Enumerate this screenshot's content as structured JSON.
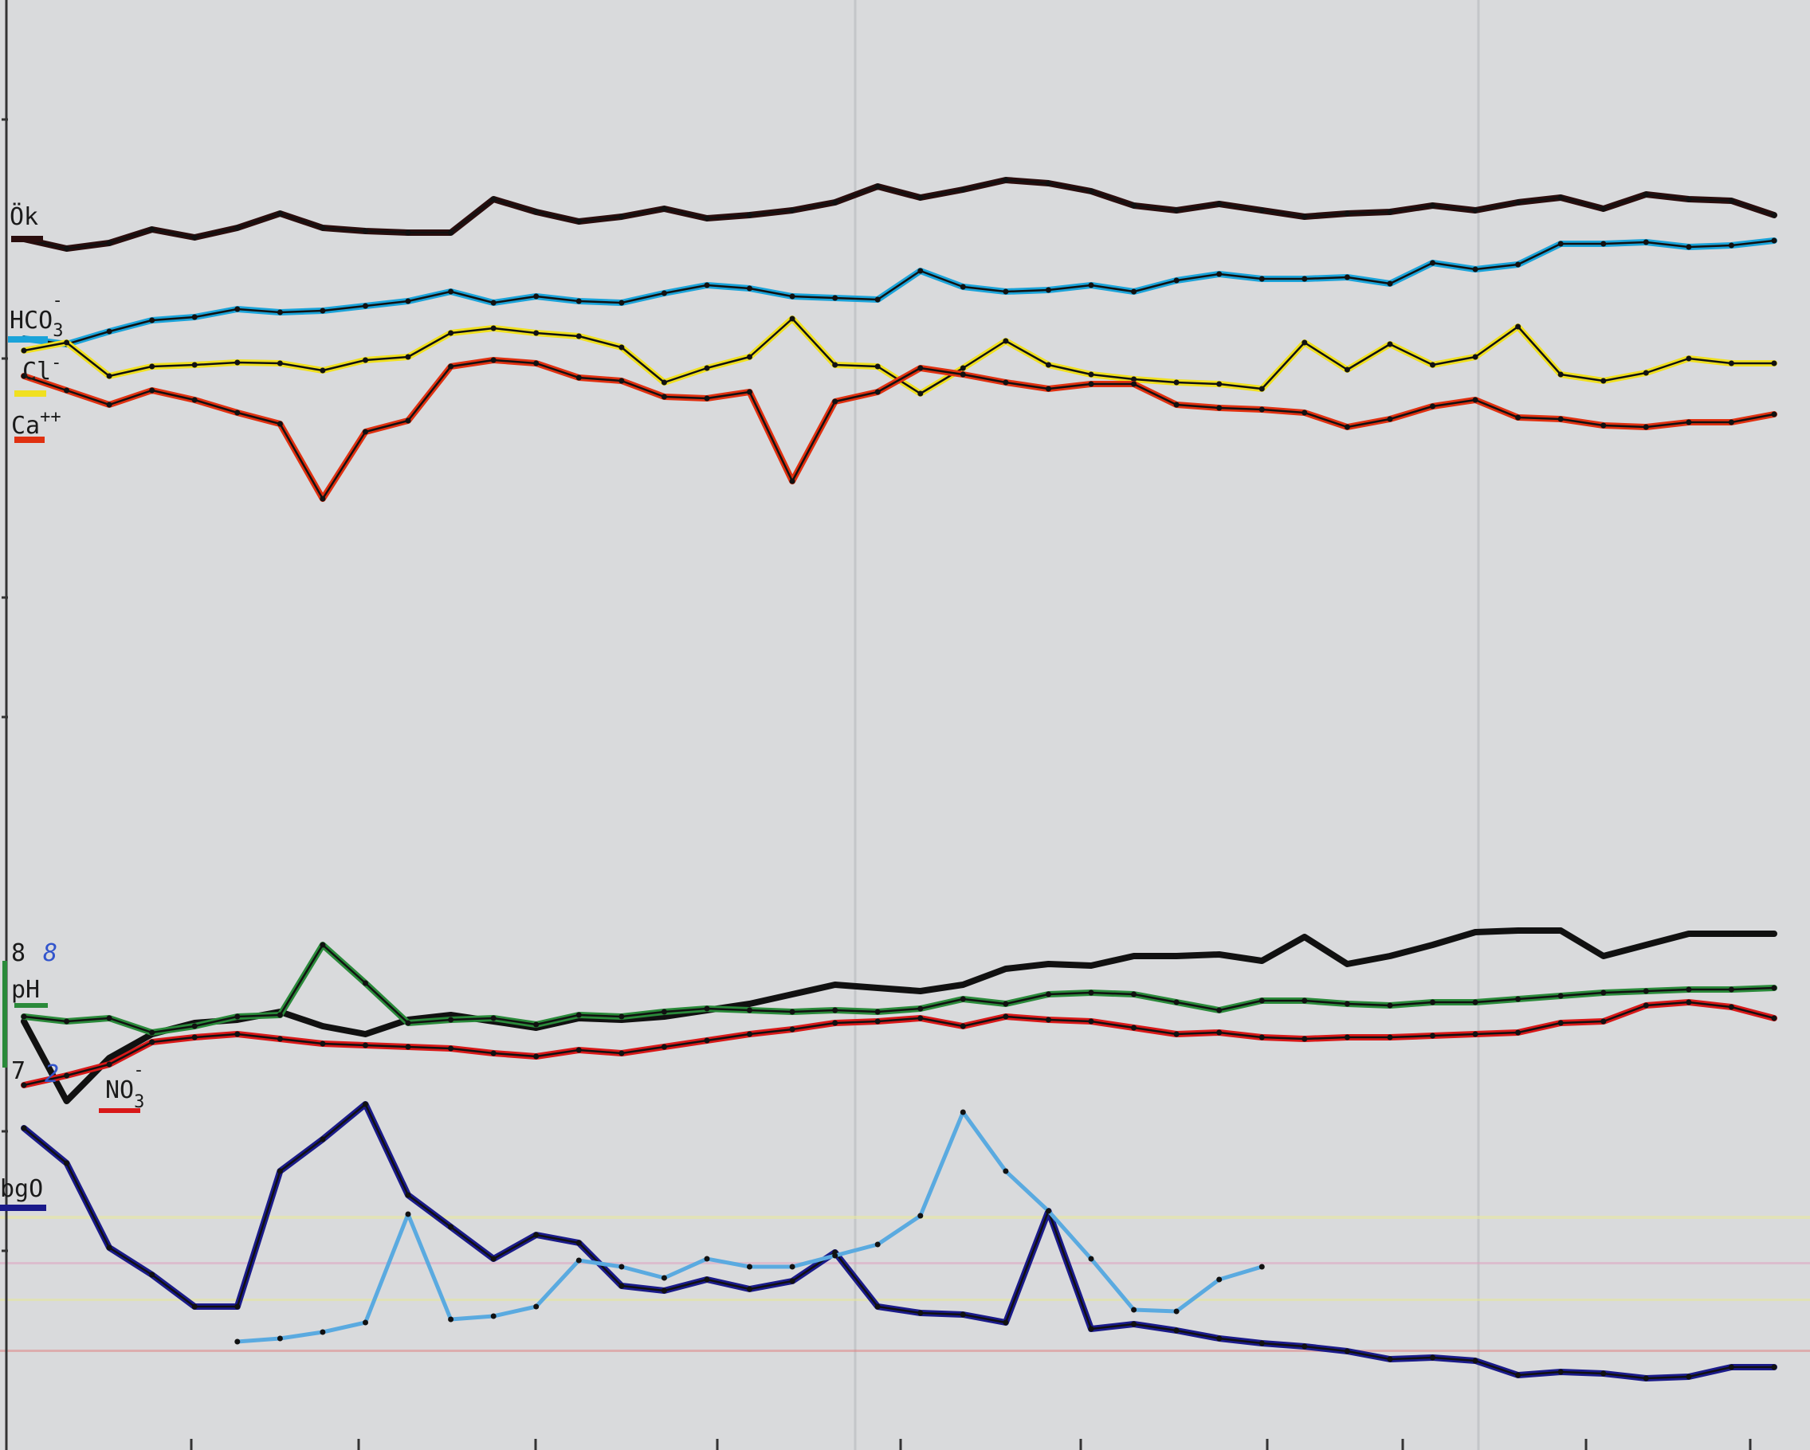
{
  "chart_data": {
    "type": "line",
    "title": "",
    "xlabel": "",
    "ylabel": "",
    "grid": false,
    "x_count": 42,
    "legend": [
      "Ök",
      "HCO3-",
      "Cl-",
      "Ca++",
      "pH",
      "NO3-",
      "bgO"
    ],
    "tick_labels": {
      "ph_high": "8",
      "ph_low": "7",
      "ph_high_handwritten": "8",
      "ph_low_handwritten": "2"
    },
    "series": [
      {
        "name": "Ök",
        "color": "#2a0d0d",
        "y": [
          300,
          312,
          305,
          288,
          298,
          286,
          268,
          286,
          290,
          292,
          292,
          250,
          266,
          278,
          272,
          262,
          274,
          270,
          264,
          254,
          234,
          248,
          238,
          226,
          230,
          240,
          258,
          264,
          256,
          264,
          272,
          268,
          266,
          258,
          264,
          254,
          248,
          262,
          244,
          250,
          252,
          270
        ]
      },
      {
        "name": "HCO3-",
        "color": "#1aa3d9",
        "y": [
          425,
          432,
          416,
          402,
          398,
          388,
          392,
          390,
          384,
          378,
          366,
          380,
          372,
          378,
          380,
          368,
          358,
          362,
          372,
          374,
          376,
          340,
          360,
          366,
          364,
          358,
          366,
          352,
          344,
          350,
          350,
          348,
          356,
          330,
          338,
          332,
          306,
          306,
          304,
          310,
          308,
          302
        ]
      },
      {
        "name": "Cl-",
        "color": "#f0e020",
        "y": [
          440,
          430,
          472,
          460,
          458,
          455,
          456,
          465,
          452,
          448,
          418,
          412,
          418,
          422,
          436,
          480,
          462,
          448,
          400,
          458,
          460,
          494,
          462,
          428,
          458,
          470,
          476,
          480,
          482,
          488,
          430,
          464,
          432,
          458,
          448,
          410,
          470,
          478,
          468,
          450,
          456,
          456
        ]
      },
      {
        "name": "Ca++",
        "color": "#e03010",
        "y": [
          472,
          490,
          508,
          490,
          502,
          518,
          532,
          626,
          542,
          528,
          460,
          452,
          456,
          474,
          478,
          498,
          500,
          492,
          604,
          504,
          492,
          462,
          470,
          480,
          488,
          482,
          482,
          508,
          512,
          514,
          518,
          536,
          526,
          510,
          502,
          524,
          526,
          534,
          536,
          530,
          530,
          520
        ]
      },
      {
        "name": "pH (black)",
        "color": "#111111",
        "y": [
          1282,
          1382,
          1328,
          1298,
          1284,
          1280,
          1270,
          1288,
          1298,
          1280,
          1274,
          1282,
          1290,
          1278,
          1280,
          1276,
          1268,
          1260,
          1248,
          1236,
          1240,
          1244,
          1236,
          1216,
          1210,
          1212,
          1200,
          1200,
          1198,
          1206,
          1176,
          1210,
          1200,
          1186,
          1170,
          1168,
          1168,
          1200,
          1186,
          1172,
          1172,
          1172
        ]
      },
      {
        "name": "pH (green)",
        "color": "#2a8a3a",
        "y": [
          1276,
          1282,
          1278,
          1296,
          1288,
          1276,
          1274,
          1186,
          1234,
          1284,
          1280,
          1278,
          1286,
          1274,
          1276,
          1270,
          1266,
          1268,
          1270,
          1268,
          1270,
          1266,
          1254,
          1260,
          1248,
          1246,
          1248,
          1258,
          1268,
          1256,
          1256,
          1260,
          1262,
          1258,
          1258,
          1254,
          1250,
          1246,
          1244,
          1242,
          1242,
          1240
        ]
      },
      {
        "name": "NO3-",
        "color": "#d81818",
        "y": [
          1362,
          1350,
          1336,
          1308,
          1302,
          1298,
          1304,
          1310,
          1312,
          1314,
          1316,
          1322,
          1326,
          1318,
          1322,
          1314,
          1306,
          1298,
          1292,
          1284,
          1282,
          1278,
          1288,
          1276,
          1280,
          1282,
          1290,
          1298,
          1296,
          1302,
          1304,
          1302,
          1302,
          1300,
          1298,
          1296,
          1284,
          1282,
          1262,
          1258,
          1264,
          1278
        ]
      },
      {
        "name": "bgO (dark)",
        "color": "#1a1a8a",
        "y": [
          1416,
          1460,
          1566,
          1600,
          1640,
          1640,
          1470,
          1430,
          1386,
          1500,
          1540,
          1580,
          1550,
          1560,
          1614,
          1620,
          1606,
          1618,
          1608,
          1572,
          1640,
          1648,
          1650,
          1660,
          1520,
          1668,
          1662,
          1670,
          1680,
          1686,
          1690,
          1696,
          1706,
          1704,
          1708,
          1726,
          1722,
          1724,
          1730,
          1728,
          1716,
          1716
        ]
      },
      {
        "name": "bgO (light)",
        "color": "#5aaae0",
        "y": [
          null,
          null,
          null,
          null,
          null,
          1684,
          1680,
          1672,
          1660,
          1524,
          1656,
          1652,
          1640,
          1582,
          1590,
          1604,
          1580,
          1590,
          1590,
          1576,
          1562,
          1526,
          1396,
          1470,
          1520,
          1580,
          1644,
          1646,
          1606,
          1590,
          null,
          null,
          null,
          null,
          null,
          null,
          null,
          null,
          null,
          null,
          null,
          null
        ]
      }
    ],
    "x_min": 0,
    "x_max": 41,
    "y_range_svg": [
      0,
      1820
    ]
  }
}
